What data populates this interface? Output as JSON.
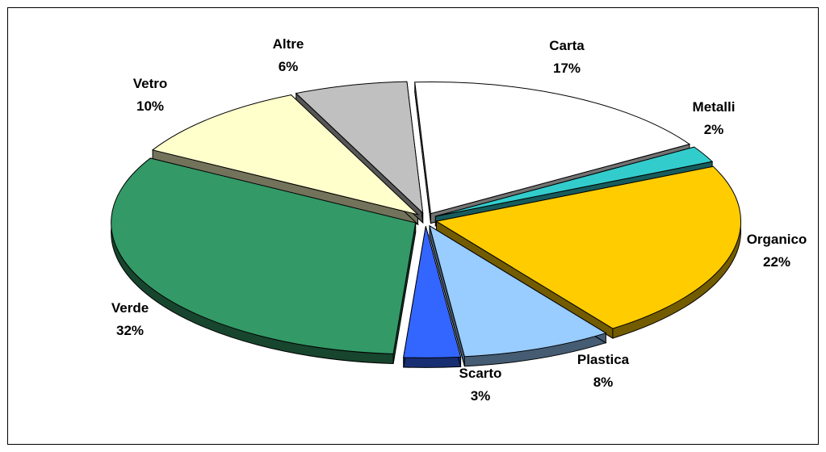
{
  "chart_data": {
    "type": "pie",
    "style": "3d-exploded",
    "title": "",
    "slices": [
      {
        "name": "Carta",
        "value": 17,
        "label": "17%",
        "color": "#ffffff"
      },
      {
        "name": "Metalli",
        "value": 2,
        "label": "2%",
        "color": "#33cccc"
      },
      {
        "name": "Organico",
        "value": 22,
        "label": "22%",
        "color": "#ffcc00"
      },
      {
        "name": "Plastica",
        "value": 8,
        "label": "8%",
        "color": "#99ccff"
      },
      {
        "name": "Scarto",
        "value": 3,
        "label": "3%",
        "color": "#3366ff"
      },
      {
        "name": "Verde",
        "value": 32,
        "label": "32%",
        "color": "#339966"
      },
      {
        "name": "Vetro",
        "value": 10,
        "label": "10%",
        "color": "#ffffcc"
      },
      {
        "name": "Altre",
        "value": 6,
        "label": "6%",
        "color": "#c0c0c0"
      }
    ]
  }
}
